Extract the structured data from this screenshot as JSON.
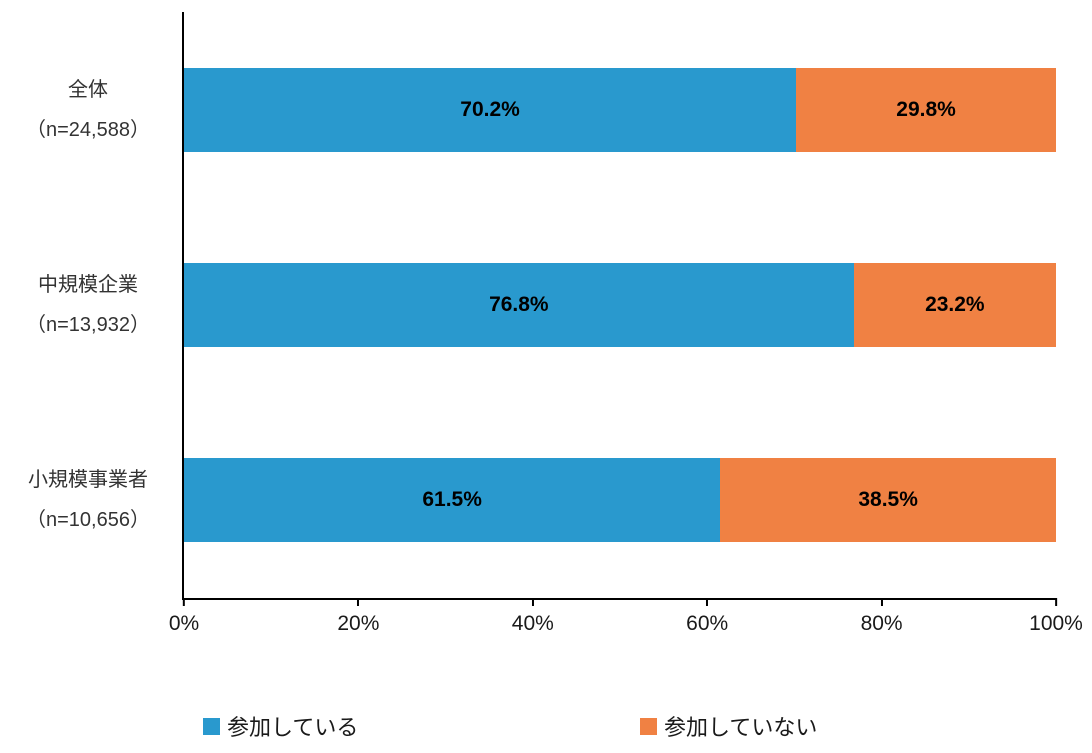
{
  "chart_data": {
    "type": "bar",
    "orientation": "horizontal",
    "stacked": true,
    "unit": "%",
    "categories": [
      "全体",
      "中規模企業",
      "小規模事業者"
    ],
    "sample_sizes": [
      "（n=24,588）",
      "（n=13,932）",
      "（n=10,656）"
    ],
    "series": [
      {
        "name": "参加している",
        "color": "#2999CE",
        "values": [
          70.2,
          76.8,
          61.5
        ],
        "labels": [
          "70.2%",
          "76.8%",
          "61.5%"
        ]
      },
      {
        "name": "参加していない",
        "color": "#F08143",
        "values": [
          29.8,
          23.2,
          38.5
        ],
        "labels": [
          "29.8%",
          "23.2%",
          "38.5%"
        ]
      }
    ],
    "x_ticks": [
      "0%",
      "20%",
      "40%",
      "60%",
      "80%",
      "100%"
    ],
    "xlim": [
      0,
      100
    ],
    "grid": false,
    "legend_position": "bottom",
    "axis_color": "#000000"
  }
}
